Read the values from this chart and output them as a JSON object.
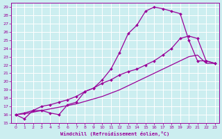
{
  "xlabel": "Windchill (Refroidissement éolien,°C)",
  "bg_color": "#cceef0",
  "grid_color": "#ffffff",
  "line_color": "#990099",
  "xlim": [
    -0.5,
    23.5
  ],
  "ylim": [
    15,
    29.5
  ],
  "xticks": [
    0,
    1,
    2,
    3,
    4,
    5,
    6,
    7,
    8,
    9,
    10,
    11,
    12,
    13,
    14,
    15,
    16,
    17,
    18,
    19,
    20,
    21,
    22,
    23
  ],
  "yticks": [
    15,
    16,
    17,
    18,
    19,
    20,
    21,
    22,
    23,
    24,
    25,
    26,
    27,
    28,
    29
  ],
  "curve1_x": [
    0,
    1,
    2,
    3,
    4,
    5,
    6,
    7,
    8,
    9,
    10,
    11,
    12,
    13,
    14,
    15,
    16,
    17,
    18,
    19,
    20,
    21,
    22,
    23
  ],
  "curve1_y": [
    16.0,
    15.5,
    16.5,
    16.5,
    16.2,
    16.0,
    17.2,
    17.5,
    18.8,
    19.2,
    20.2,
    21.5,
    23.5,
    25.8,
    26.8,
    28.5,
    29.0,
    28.8,
    28.5,
    28.2,
    25.0,
    22.5,
    22.5,
    22.2
  ],
  "curve2_x": [
    0,
    1,
    2,
    3,
    4,
    5,
    6,
    7,
    8,
    9,
    10,
    11,
    12,
    13,
    14,
    15,
    16,
    17,
    18,
    19,
    20,
    21,
    22,
    23
  ],
  "curve2_y": [
    16.0,
    16.2,
    16.5,
    17.0,
    17.2,
    17.5,
    17.8,
    18.2,
    18.8,
    19.2,
    19.8,
    20.2,
    20.8,
    21.2,
    21.5,
    22.0,
    22.5,
    23.2,
    24.0,
    25.2,
    25.5,
    25.2,
    22.5,
    22.2
  ],
  "curve3_x": [
    0,
    1,
    2,
    3,
    4,
    5,
    6,
    7,
    8,
    9,
    10,
    11,
    12,
    13,
    14,
    15,
    16,
    17,
    18,
    19,
    20,
    21,
    22,
    23
  ],
  "curve3_y": [
    16.0,
    16.1,
    16.3,
    16.5,
    16.7,
    16.9,
    17.1,
    17.3,
    17.6,
    17.9,
    18.2,
    18.6,
    19.0,
    19.5,
    20.0,
    20.5,
    21.0,
    21.5,
    22.0,
    22.5,
    23.0,
    23.2,
    22.2,
    22.2
  ]
}
